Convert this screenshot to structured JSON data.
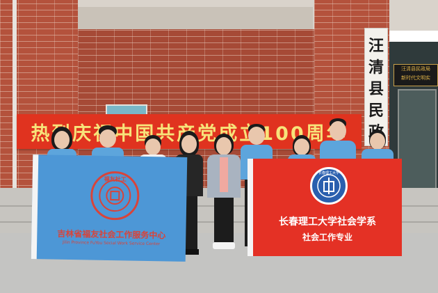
{
  "banner": {
    "text": "热烈庆祝中国共产党成立100周年"
  },
  "door_sign": {
    "chars": [
      "汪",
      "清",
      "县",
      "民",
      "政"
    ]
  },
  "plaque": {
    "line1": "汪清县民政局",
    "line2": "新时代文明实"
  },
  "blue_flag": {
    "emblem_text": "福友社工",
    "title": "吉林省福友社会工作服务中心",
    "subtitle": "Jilin Province FuYou Social Work Service Center"
  },
  "red_flag": {
    "emblem_text": "长春理工大学",
    "line1": "长春理工大学社会学系",
    "line2": "社会工作专业"
  },
  "colors": {
    "banner_red": "#e0331f",
    "banner_text": "#f7e37a",
    "blue_flag": "#4d97d6",
    "red_flag": "#e43125",
    "brick": "#b4523c"
  }
}
